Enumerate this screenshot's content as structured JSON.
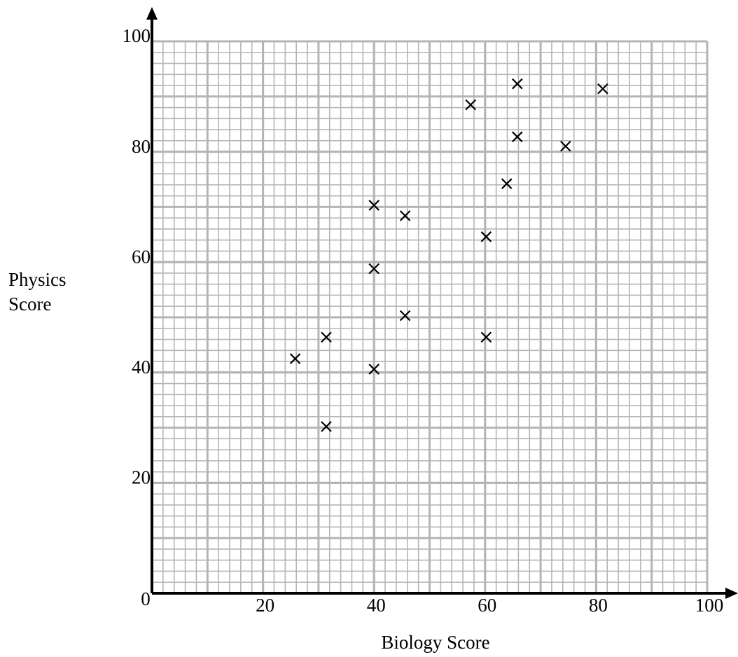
{
  "chart_data": {
    "type": "scatter",
    "x_label": "Biology Score",
    "y_label": "Physics Score",
    "x": [
      25.8,
      31.4,
      31.4,
      40,
      40,
      40,
      45.6,
      45.6,
      57.4,
      60.2,
      60.2,
      63.9,
      65.8,
      65.8,
      74.5,
      81.2
    ],
    "series": [
      {
        "color": "#000000",
        "values": [
          42.5,
          46.4,
          30.2,
          70.3,
          58.8,
          40.6,
          68.4,
          50.3,
          88.5,
          64.6,
          46.4,
          74.2,
          92.3,
          82.7,
          81,
          91.4
        ]
      }
    ],
    "xlim": [
      0,
      100
    ],
    "ylim": [
      0,
      100
    ],
    "xticks": [
      0,
      20,
      40,
      60,
      80,
      100
    ],
    "yticks": [
      20,
      40,
      60,
      80,
      100
    ],
    "grid": true
  }
}
